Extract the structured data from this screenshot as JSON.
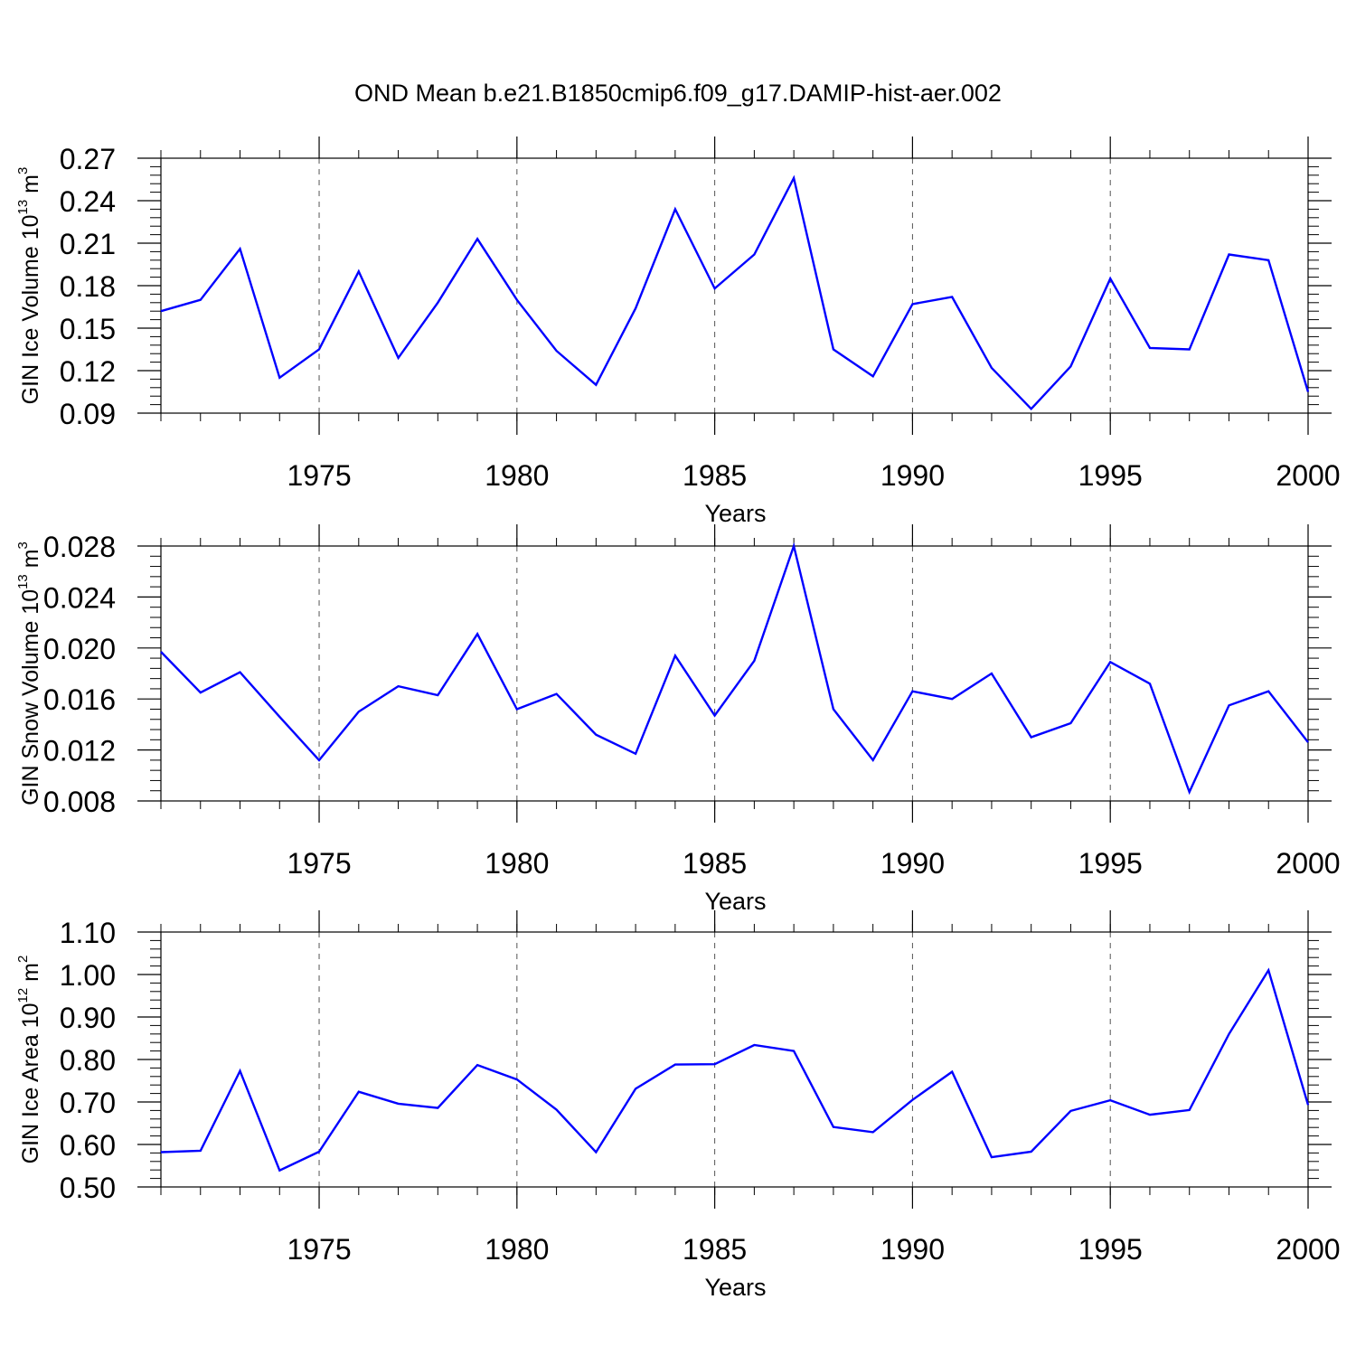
{
  "title": "OND Mean b.e21.B1850cmip6.f09_g17.DAMIP-hist-aer.002",
  "colors": {
    "line": "#0000ff",
    "axis": "#000000",
    "grid": "#555555"
  },
  "chart_data": [
    {
      "type": "line",
      "xlabel": "Years",
      "ylabel": {
        "text": "GIN Ice Volume 10",
        "exp": "13",
        "unit": " m",
        "unit_exp": "3"
      },
      "xlim": [
        1971,
        2000
      ],
      "ylim": [
        0.09,
        0.27
      ],
      "xticks": [
        "1975",
        "1980",
        "1985",
        "1990",
        "1995",
        "2000"
      ],
      "yticks": [
        "0.09",
        "0.12",
        "0.15",
        "0.18",
        "0.21",
        "0.24",
        "0.27"
      ],
      "grid": "vertical dashed",
      "x": [
        1971,
        1972,
        1973,
        1974,
        1975,
        1976,
        1977,
        1978,
        1979,
        1980,
        1981,
        1982,
        1983,
        1984,
        1985,
        1986,
        1987,
        1988,
        1989,
        1990,
        1991,
        1992,
        1993,
        1994,
        1995,
        1996,
        1997,
        1998,
        1999,
        2000
      ],
      "values": [
        0.162,
        0.17,
        0.206,
        0.115,
        0.135,
        0.19,
        0.129,
        0.168,
        0.213,
        0.17,
        0.134,
        0.11,
        0.164,
        0.234,
        0.178,
        0.202,
        0.256,
        0.135,
        0.116,
        0.167,
        0.172,
        0.122,
        0.093,
        0.123,
        0.185,
        0.136,
        0.135,
        0.202,
        0.198,
        0.105
      ]
    },
    {
      "type": "line",
      "xlabel": "Years",
      "ylabel": {
        "text": "GIN Snow Volume 10",
        "exp": "13",
        "unit": " m",
        "unit_exp": "3"
      },
      "xlim": [
        1971,
        2000
      ],
      "ylim": [
        0.008,
        0.028
      ],
      "xticks": [
        "1975",
        "1980",
        "1985",
        "1990",
        "1995",
        "2000"
      ],
      "yticks": [
        "0.008",
        "0.012",
        "0.016",
        "0.020",
        "0.024",
        "0.028"
      ],
      "grid": "vertical dashed",
      "x": [
        1971,
        1972,
        1973,
        1974,
        1975,
        1976,
        1977,
        1978,
        1979,
        1980,
        1981,
        1982,
        1983,
        1984,
        1985,
        1986,
        1987,
        1988,
        1989,
        1990,
        1991,
        1992,
        1993,
        1994,
        1995,
        1996,
        1997,
        1998,
        1999,
        2000
      ],
      "values": [
        0.0197,
        0.0165,
        0.0181,
        0.0146,
        0.0112,
        0.015,
        0.017,
        0.0163,
        0.0211,
        0.0152,
        0.0164,
        0.0132,
        0.0117,
        0.0194,
        0.0147,
        0.019,
        0.028,
        0.0152,
        0.0112,
        0.0166,
        0.016,
        0.018,
        0.013,
        0.0141,
        0.0189,
        0.0172,
        0.0087,
        0.0155,
        0.0166,
        0.0126
      ]
    },
    {
      "type": "line",
      "xlabel": "Years",
      "ylabel": {
        "text": "GIN Ice Area 10",
        "exp": "12",
        "unit": " m",
        "unit_exp": "2"
      },
      "xlim": [
        1971,
        2000
      ],
      "ylim": [
        0.5,
        1.1
      ],
      "xticks": [
        "1975",
        "1980",
        "1985",
        "1990",
        "1995",
        "2000"
      ],
      "yticks": [
        "0.50",
        "0.60",
        "0.70",
        "0.80",
        "0.90",
        "1.00",
        "1.10"
      ],
      "grid": "vertical dashed",
      "x": [
        1971,
        1972,
        1973,
        1974,
        1975,
        1976,
        1977,
        1978,
        1979,
        1980,
        1981,
        1982,
        1983,
        1984,
        1985,
        1986,
        1987,
        1988,
        1989,
        1990,
        1991,
        1992,
        1993,
        1994,
        1995,
        1996,
        1997,
        1998,
        1999,
        2000
      ],
      "values": [
        0.582,
        0.585,
        0.773,
        0.539,
        0.583,
        0.724,
        0.696,
        0.686,
        0.787,
        0.753,
        0.682,
        0.582,
        0.731,
        0.788,
        0.789,
        0.834,
        0.82,
        0.641,
        0.629,
        0.705,
        0.771,
        0.57,
        0.583,
        0.679,
        0.704,
        0.67,
        0.681,
        0.86,
        1.01,
        0.693
      ]
    }
  ]
}
